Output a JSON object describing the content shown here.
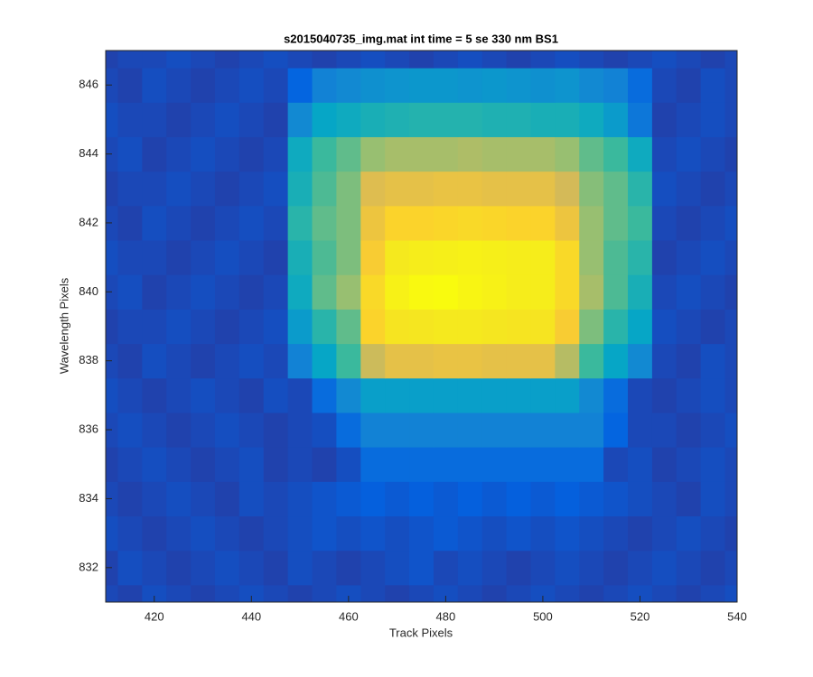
{
  "chart_data": {
    "type": "heatmap",
    "title": "s2015040735_img.mat int time = 5 se  330 nm BS1",
    "x_label": "Track Pixels",
    "y_label": "Wavelength Pixels",
    "colormap": "parula",
    "clim": [
      10,
      95
    ],
    "xlim": [
      410,
      540
    ],
    "ylim": [
      831,
      847
    ],
    "xticks": [
      420,
      440,
      460,
      480,
      500,
      520,
      540
    ],
    "yticks": [
      832,
      834,
      836,
      838,
      840,
      842,
      844,
      846
    ],
    "x": [
      410,
      415,
      420,
      425,
      430,
      435,
      440,
      445,
      450,
      455,
      460,
      465,
      470,
      475,
      480,
      485,
      490,
      495,
      500,
      505,
      510,
      515,
      520,
      525,
      530,
      535,
      540
    ],
    "y": [
      831,
      832,
      833,
      834,
      835,
      836,
      837,
      838,
      839,
      840,
      841,
      842,
      843,
      844,
      845,
      846,
      847
    ],
    "z": [
      [
        15,
        14,
        16,
        15,
        14,
        15,
        16,
        15,
        14,
        15,
        16,
        15,
        14,
        15,
        16,
        15,
        14,
        15,
        16,
        15,
        14,
        15,
        16,
        15,
        14,
        15,
        16
      ],
      [
        14,
        16,
        15,
        14,
        15,
        16,
        15,
        14,
        16,
        15,
        14,
        15,
        16,
        17,
        15,
        16,
        15,
        14,
        15,
        16,
        15,
        14,
        15,
        16,
        15,
        14,
        15
      ],
      [
        16,
        15,
        14,
        15,
        16,
        15,
        14,
        15,
        16,
        17,
        16,
        17,
        16,
        17,
        18,
        17,
        16,
        17,
        16,
        17,
        16,
        15,
        14,
        15,
        16,
        15,
        14
      ],
      [
        15,
        14,
        15,
        16,
        15,
        14,
        16,
        15,
        16,
        17,
        18,
        19,
        18,
        19,
        18,
        19,
        18,
        19,
        18,
        19,
        18,
        17,
        16,
        15,
        14,
        16,
        15
      ],
      [
        14,
        15,
        16,
        15,
        14,
        15,
        16,
        14,
        15,
        14,
        16,
        22,
        22,
        22,
        22,
        22,
        22,
        22,
        22,
        22,
        22,
        15,
        16,
        14,
        15,
        16,
        15
      ],
      [
        15,
        16,
        15,
        14,
        15,
        16,
        15,
        14,
        15,
        16,
        22,
        28,
        28,
        28,
        28,
        28,
        28,
        28,
        28,
        28,
        28,
        20,
        15,
        15,
        14,
        15,
        16
      ],
      [
        16,
        15,
        14,
        15,
        16,
        15,
        14,
        16,
        15,
        22,
        30,
        36,
        36,
        36,
        36,
        36,
        36,
        36,
        36,
        36,
        30,
        22,
        15,
        14,
        15,
        16,
        15
      ],
      [
        15,
        14,
        16,
        15,
        14,
        15,
        16,
        15,
        28,
        38,
        48,
        65,
        70,
        70,
        71,
        71,
        70,
        70,
        70,
        62,
        48,
        38,
        30,
        15,
        14,
        16,
        15
      ],
      [
        14,
        15,
        15,
        16,
        15,
        14,
        15,
        16,
        35,
        45,
        52,
        78,
        84,
        85,
        86,
        86,
        85,
        84,
        84,
        75,
        55,
        45,
        38,
        16,
        15,
        14,
        15
      ],
      [
        15,
        16,
        14,
        15,
        16,
        15,
        14,
        15,
        40,
        52,
        58,
        80,
        90,
        94,
        95,
        92,
        90,
        88,
        88,
        80,
        60,
        50,
        42,
        15,
        16,
        15,
        14
      ],
      [
        16,
        15,
        15,
        14,
        15,
        16,
        15,
        14,
        42,
        50,
        55,
        75,
        86,
        88,
        89,
        90,
        89,
        88,
        88,
        80,
        58,
        50,
        45,
        14,
        15,
        16,
        15
      ],
      [
        15,
        14,
        16,
        15,
        14,
        15,
        16,
        15,
        45,
        52,
        55,
        72,
        78,
        78,
        79,
        80,
        79,
        78,
        78,
        72,
        58,
        52,
        48,
        15,
        14,
        15,
        16
      ],
      [
        14,
        15,
        15,
        16,
        15,
        14,
        15,
        16,
        42,
        50,
        55,
        68,
        70,
        70,
        71,
        71,
        70,
        70,
        70,
        66,
        56,
        52,
        45,
        16,
        15,
        14,
        15
      ],
      [
        15,
        16,
        14,
        15,
        16,
        15,
        14,
        15,
        40,
        48,
        52,
        58,
        60,
        60,
        60,
        61,
        60,
        60,
        60,
        58,
        52,
        48,
        40,
        15,
        16,
        15,
        14
      ],
      [
        16,
        15,
        15,
        14,
        15,
        16,
        15,
        14,
        30,
        38,
        40,
        42,
        43,
        44,
        44,
        44,
        43,
        43,
        42,
        42,
        40,
        35,
        25,
        14,
        15,
        16,
        15
      ],
      [
        15,
        14,
        16,
        15,
        14,
        15,
        16,
        15,
        20,
        28,
        30,
        32,
        33,
        34,
        34,
        33,
        34,
        33,
        32,
        33,
        30,
        28,
        22,
        15,
        14,
        16,
        15
      ],
      [
        14,
        15,
        15,
        16,
        15,
        14,
        15,
        16,
        15,
        14,
        15,
        16,
        15,
        14,
        15,
        16,
        15,
        14,
        15,
        16,
        15,
        14,
        15,
        16,
        15,
        14,
        15
      ]
    ]
  }
}
